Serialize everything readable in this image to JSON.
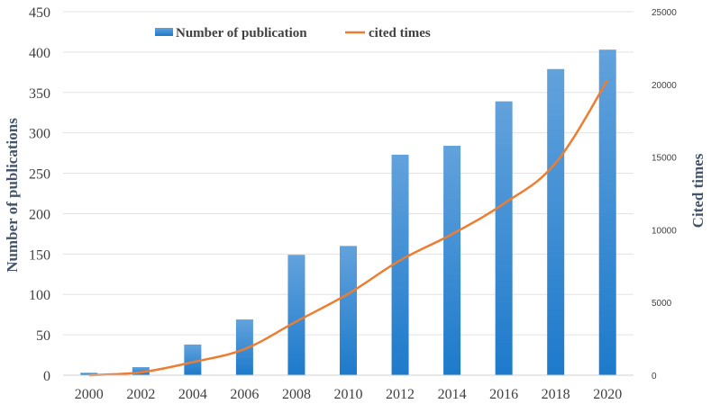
{
  "chart_data": {
    "type": "bar+line",
    "title": "",
    "categories": [
      "2000",
      "2002",
      "2004",
      "2006",
      "2008",
      "2010",
      "2012",
      "2014",
      "2016",
      "2018",
      "2020"
    ],
    "series": [
      {
        "name": "Number of publication",
        "type": "bar",
        "axis": "left",
        "color": "#2f86d1",
        "values": [
          3,
          10,
          38,
          69,
          149,
          160,
          273,
          284,
          339,
          379,
          403
        ]
      },
      {
        "name": "cited times",
        "type": "line",
        "axis": "right",
        "color": "#ed7d31",
        "values": [
          0,
          200,
          900,
          1800,
          3700,
          5600,
          7900,
          9700,
          11800,
          14600,
          20300
        ]
      }
    ],
    "ylabel": "Number of publications",
    "y2label": "Cited times",
    "ylim": [
      0,
      450
    ],
    "y2lim": [
      0,
      25000
    ],
    "yticks": [
      "0",
      "50",
      "100",
      "150",
      "200",
      "250",
      "300",
      "350",
      "400",
      "450"
    ],
    "y2ticks": [
      "0",
      "5000",
      "10000",
      "15000",
      "20000",
      "25000"
    ],
    "legend_position": "top-center",
    "grid": true
  }
}
